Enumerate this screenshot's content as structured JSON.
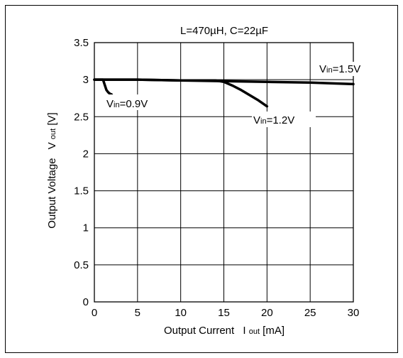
{
  "chart_data": {
    "type": "line",
    "title": "L=470µH, C=22µF",
    "xlabel": {
      "main": "Output Current",
      "symbol": "I",
      "sub": "out",
      "unit": "[mA]"
    },
    "ylabel": {
      "main": "Output Voltage",
      "symbol": "V",
      "sub": "out",
      "unit": "[V]"
    },
    "xlim": [
      0,
      30
    ],
    "ylim": [
      0,
      3.5
    ],
    "xticks": [
      "0",
      "5",
      "10",
      "15",
      "20",
      "25",
      "30"
    ],
    "yticks": [
      "0",
      "0.5",
      "1",
      "1.5",
      "2",
      "2.5",
      "3",
      "3.5"
    ],
    "grid": true,
    "series": [
      {
        "label": {
          "symbol": "V",
          "sub": "in",
          "rest": "=0.9V"
        },
        "points": [
          [
            0,
            3.0
          ],
          [
            0.5,
            3.0
          ],
          [
            1.0,
            3.0
          ],
          [
            1.2,
            2.93
          ],
          [
            1.4,
            2.86
          ],
          [
            1.6,
            2.83
          ],
          [
            1.8,
            2.81
          ],
          [
            2.0,
            2.8
          ],
          [
            2.1,
            2.78
          ]
        ]
      },
      {
        "label": {
          "symbol": "V",
          "sub": "in",
          "rest": "=1.2V"
        },
        "points": [
          [
            0,
            3.0
          ],
          [
            5,
            3.0
          ],
          [
            10,
            2.99
          ],
          [
            14,
            2.99
          ],
          [
            15,
            2.97
          ],
          [
            16,
            2.92
          ],
          [
            17,
            2.86
          ],
          [
            18,
            2.79
          ],
          [
            19,
            2.72
          ],
          [
            20,
            2.64
          ]
        ]
      },
      {
        "label": {
          "symbol": "V",
          "sub": "in",
          "rest": "=1.5V"
        },
        "points": [
          [
            0,
            3.0
          ],
          [
            5,
            3.0
          ],
          [
            10,
            2.99
          ],
          [
            15,
            2.98
          ],
          [
            20,
            2.97
          ],
          [
            25,
            2.96
          ],
          [
            30,
            2.94
          ]
        ]
      }
    ]
  }
}
